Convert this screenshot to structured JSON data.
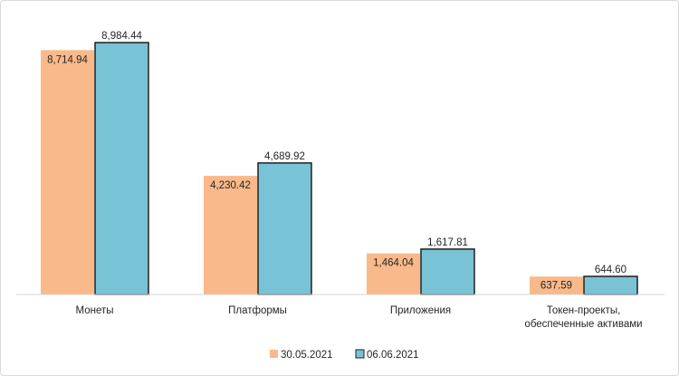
{
  "chart_data": {
    "type": "bar",
    "categories": [
      [
        "Монеты"
      ],
      [
        "Платформы"
      ],
      [
        "Приложения"
      ],
      [
        "Токен-проекты,",
        "обеспеченные активами"
      ]
    ],
    "series": [
      {
        "name": "30.05.2021",
        "color": "#f9b98a",
        "values": [
          8714.94,
          4230.42,
          1464.04,
          637.59
        ],
        "labels": [
          "8,714.94",
          "4,230.42",
          "1,464.04",
          "637.59"
        ]
      },
      {
        "name": "06.06.2021",
        "color": "#79c3d6",
        "values": [
          8984.44,
          4689.92,
          1617.81,
          644.6
        ],
        "labels": [
          "8,984.44",
          "4,689.92",
          "1,617.81",
          "644.60"
        ]
      }
    ],
    "ylim": [
      0,
      8984.44
    ],
    "grid": false,
    "legend": "bottom-center"
  }
}
